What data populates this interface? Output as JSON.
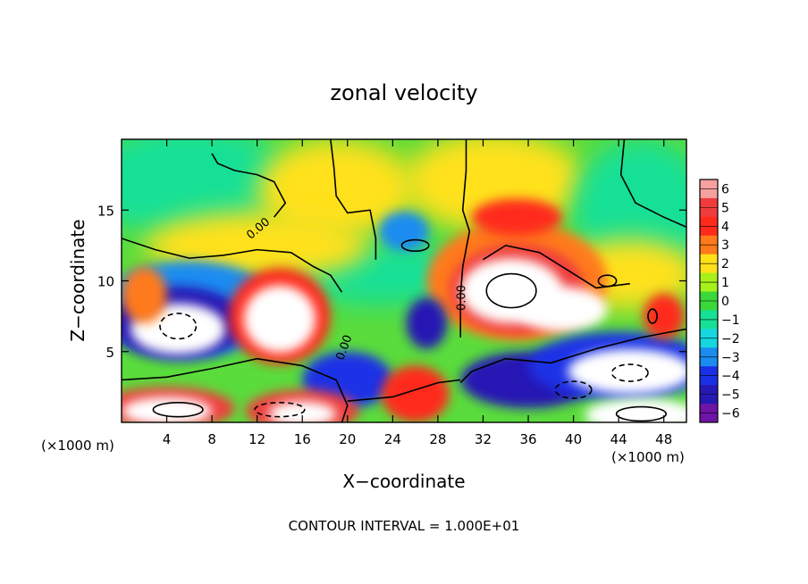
{
  "chart_data": {
    "type": "heatmap",
    "title": "zonal velocity",
    "xlabel": "X−coordinate",
    "ylabel": "Z−coordinate",
    "x_unit_left": "(×1000 m)",
    "x_unit_right": "(×1000 m)",
    "footer": "CONTOUR INTERVAL = 1.000E+01",
    "xlim": [
      0,
      50
    ],
    "ylim": [
      0,
      20
    ],
    "x_ticks": [
      4,
      8,
      12,
      16,
      20,
      24,
      28,
      32,
      36,
      40,
      44,
      48
    ],
    "y_ticks": [
      5,
      10,
      15
    ],
    "contour_labels": [
      "0.00",
      "0.00",
      "0.00"
    ],
    "colorbar": {
      "levels": [
        6,
        5,
        4,
        3,
        2,
        1,
        0,
        -1,
        -2,
        -3,
        -4,
        -5,
        -6
      ],
      "colors": [
        "#f6a0a0",
        "#f03c3c",
        "#ff2a1a",
        "#ff7a1a",
        "#ffe11a",
        "#a8f01a",
        "#3ad83a",
        "#16e096",
        "#16d7e0",
        "#1a8cf0",
        "#1a30e6",
        "#2618b4",
        "#6e14a6"
      ]
    },
    "features": [
      {
        "type": "max",
        "x": 14,
        "z": 7.5,
        "value": 8
      },
      {
        "type": "max",
        "x": 34.5,
        "z": 9.3,
        "value": 9
      },
      {
        "type": "min",
        "x": 5,
        "z": 6.8,
        "value": -8
      },
      {
        "type": "min",
        "x": 45,
        "z": 3.5,
        "value": -8
      },
      {
        "type": "min",
        "x": 27,
        "z": 7.0,
        "value": -6
      },
      {
        "type": "min",
        "x": 36,
        "z": 2.8,
        "value": -6
      },
      {
        "type": "max",
        "x": 4,
        "z": 1.0,
        "value": 8
      },
      {
        "type": "max",
        "x": 46,
        "z": 0.5,
        "value": 8
      },
      {
        "type": "max",
        "x": 16,
        "z": 0.8,
        "value": 7
      },
      {
        "type": "max",
        "x": 18,
        "z": 17.0,
        "value": 2.5
      },
      {
        "type": "max",
        "x": 35,
        "z": 14.5,
        "value": 4
      },
      {
        "type": "min",
        "x": 25,
        "z": 13.5,
        "value": -3
      },
      {
        "type": "max",
        "x": 48,
        "z": 7.5,
        "value": 4
      }
    ]
  }
}
